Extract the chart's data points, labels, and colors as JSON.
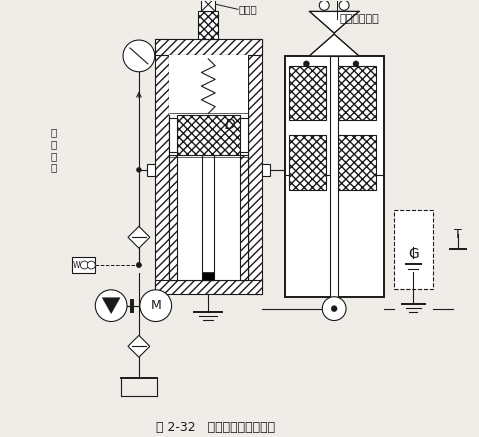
{
  "title": "图 2-32   液压系统调整示意图",
  "label_solenoid": "电液调压装置",
  "label_overflow": "溢流阀",
  "label_safety": "进\n安\n全\n阀",
  "label_D": "D",
  "label_G": "G",
  "label_M": "M",
  "bg_color": "#ffffff",
  "line_color": "#1a1a1a",
  "hatch_color": "#333333"
}
